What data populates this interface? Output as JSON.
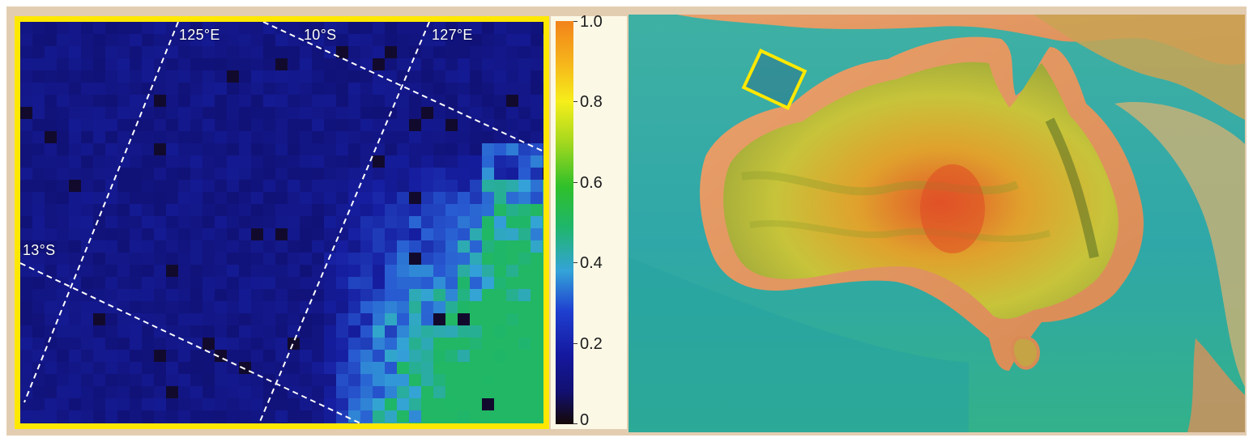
{
  "heatmap": {
    "grid_labels": {
      "lon_125": "125°E",
      "lat_10": "10°S",
      "lon_127": "127°E",
      "lat_13": "13°S"
    }
  },
  "colorbar": {
    "ticks": [
      "1.0",
      "0.8",
      "0.6",
      "0.4",
      "0.2",
      "0"
    ],
    "min": 0,
    "max": 1.0,
    "colors": [
      "#140906",
      "#14189e",
      "#34a3d8",
      "#30c02a",
      "#f6ee1a",
      "#f2831a"
    ]
  },
  "map": {
    "highlight_box_color": "#ffe800",
    "ocean_color": "#2e9f9d",
    "land_color": "#c9c23a"
  },
  "colors": {
    "frame": "#e3cdb1",
    "panel_border": "#ffe800",
    "low_value": "#0b0a62"
  }
}
